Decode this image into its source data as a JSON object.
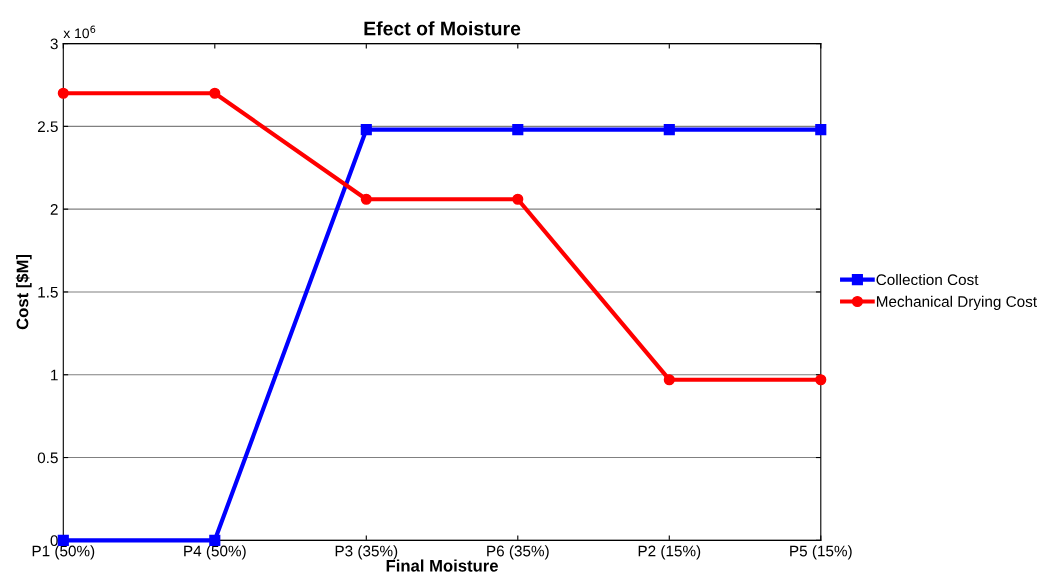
{
  "chart_data": {
    "type": "line",
    "title": "Efect of Moisture",
    "xlabel": "Final Moisture",
    "ylabel": "Cost [$M]",
    "categories": [
      "P1 (50%)",
      "P4 (50%)",
      "P3 (35%)",
      "P6 (35%)",
      "P2 (15%)",
      "P5 (15%)"
    ],
    "series": [
      {
        "name": "Collection Cost",
        "color": "#0000ff",
        "marker": "square",
        "values": [
          0,
          0,
          2.48,
          2.48,
          2.48,
          2.48
        ]
      },
      {
        "name": "Mechanical Drying Cost",
        "color": "#ff0000",
        "marker": "circle",
        "values": [
          2.7,
          2.7,
          2.06,
          2.06,
          0.97,
          0.97
        ]
      }
    ],
    "ylim": [
      0,
      3
    ],
    "yticks": [
      0,
      0.5,
      1,
      1.5,
      2,
      2.5,
      3
    ],
    "annotations": [
      "x 10$^{6}$"
    ],
    "grid": "y",
    "legend": "right",
    "line_style": "solid"
  }
}
